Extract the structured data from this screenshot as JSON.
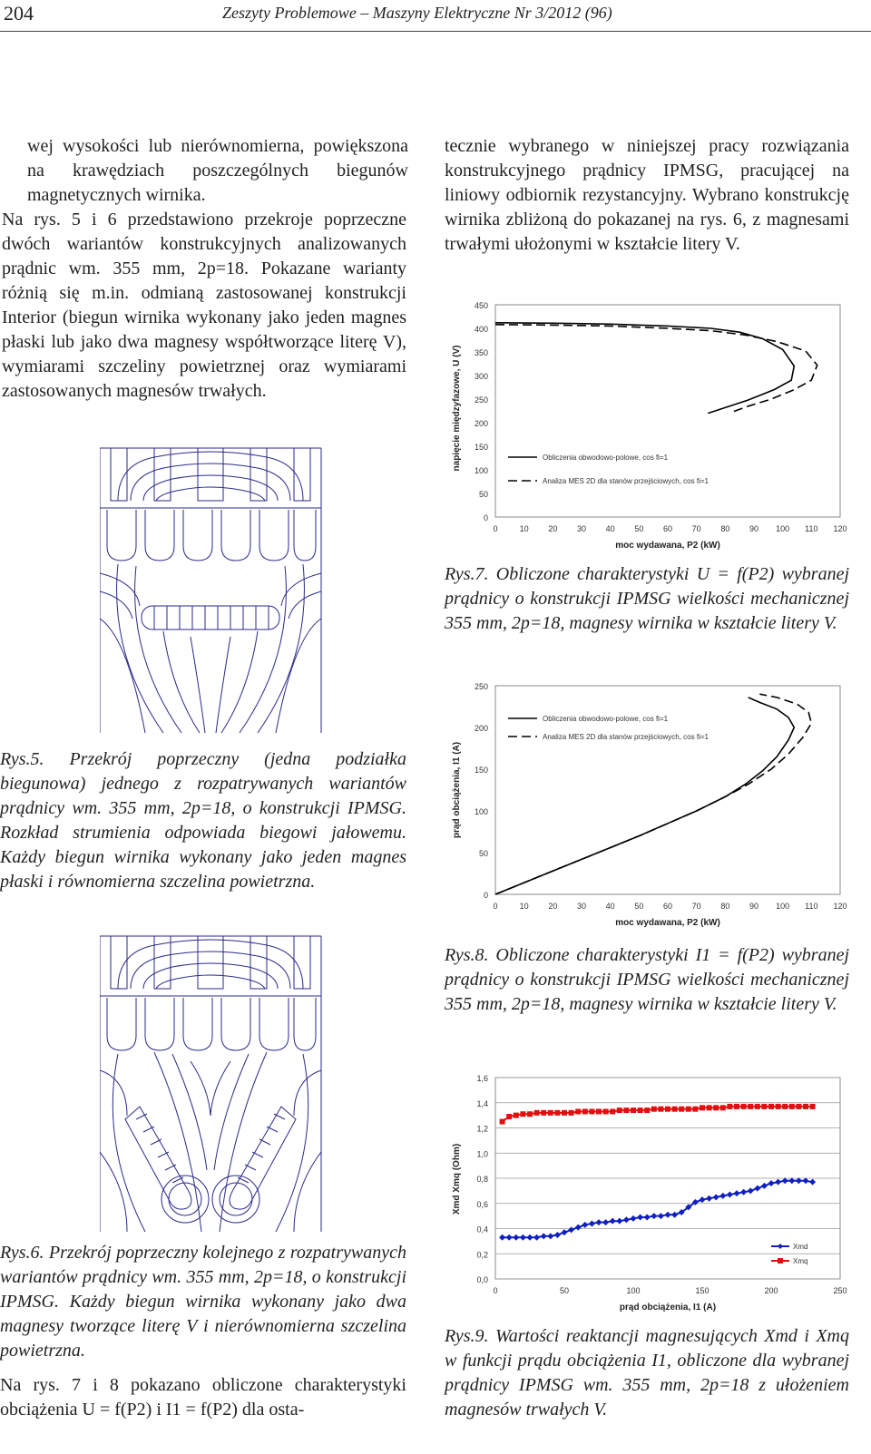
{
  "header": {
    "page_number": "204",
    "journal": "Zeszyty Problemowe – Maszyny Elektryczne Nr 3/2012 (96)"
  },
  "left_column": {
    "para1": "wej wysokości lub nierównomierna, powiększona na krawędziach poszczególnych biegunów magnetycznych wirnika.",
    "para2": "Na rys. 5 i 6 przedstawiono przekroje poprzeczne dwóch wariantów konstrukcyjnych analizowanych prądnic wm. 355 mm, 2p=18. Pokazane warianty różnią się m.in. odmianą zastosowanej konstrukcji Interior (biegun wirnika wykonany jako jeden magnes płaski lub jako dwa magnesy współtworzące literę V), wymiarami szczeliny powietrznej oraz wymiarami zastosowanych magnesów trwałych.",
    "fig5_caption": "Rys.5. Przekrój poprzeczny (jedna podziałka biegunowa) jednego z rozpatrywanych wariantów prądnicy wm. 355 mm, 2p=18, o konstrukcji IPMSG. Rozkład strumienia odpowiada biegowi jałowemu. Każdy biegun wirnika wykonany jako jeden magnes płaski i równomierna szczelina powietrzna.",
    "fig6_caption": "Rys.6. Przekrój poprzeczny kolejnego z rozpatrywanych wariantów prądnicy wm. 355 mm, 2p=18, o konstrukcji IPMSG. Każdy biegun wirnika wykonany jako dwa magnesy tworzące literę V i nierównomierna szczelina powietrzna.",
    "para3": "Na rys. 7 i 8 pokazano obliczone charakterystyki obciążenia U = f(P2) i I1 = f(P2) dla osta-"
  },
  "right_column": {
    "para1": "tecznie wybranego w niniejszej pracy rozwiązania konstrukcyjnego prądnicy IPMSG, pracującej na liniowy odbiornik rezystancyjny. Wybrano konstrukcję wirnika zbliżoną do pokazanej na rys. 6, z magnesami trwałymi ułożonymi w kształcie litery V.",
    "fig7_caption": "Rys.7. Obliczone charakterystyki U = f(P2) wybranej prądnicy o konstrukcji IPMSG wielkości mechanicznej 355 mm, 2p=18, magnesy wirnika w kształcie litery V.",
    "fig8_caption": "Rys.8. Obliczone charakterystyki I1 = f(P2) wybranej prądnicy o konstrukcji IPMSG wielkości mechanicznej 355 mm, 2p=18, magnesy wirnika w kształcie litery V.",
    "fig9_caption": "Rys.9. Wartości reaktancji magnesujących Xmd i Xmq w funkcji prądu obciążenia I1, obliczone dla wybranej prądnicy IPMSG wm. 355 mm, 2p=18 z ułożeniem magnesów trwałych V."
  },
  "colors": {
    "line": "#000000",
    "xmd": "#1020c0",
    "xmq": "#e01010",
    "drawing": "#2a2a8a"
  },
  "chart_data": [
    {
      "type": "line",
      "xlabel": "moc wydawana, P2 (kW)",
      "ylabel": "napięcie międzyfazowe, U (V)",
      "xticks": [
        "0",
        "10",
        "20",
        "30",
        "40",
        "50",
        "60",
        "70",
        "80",
        "90",
        "100",
        "110",
        "120"
      ],
      "yticks": [
        "0",
        "50",
        "100",
        "150",
        "200",
        "250",
        "300",
        "350",
        "400",
        "450"
      ],
      "xlim": [
        0,
        120
      ],
      "ylim": [
        0,
        450
      ],
      "legend_position": "lower-left",
      "series": [
        {
          "name": "Obliczenia obwodowo-polowe, cos fi=1",
          "style": "solid",
          "x": [
            0,
            20,
            40,
            60,
            75,
            85,
            93,
            100,
            104,
            103,
            97,
            88,
            80,
            74
          ],
          "y": [
            412,
            411,
            409,
            405,
            400,
            392,
            378,
            355,
            320,
            290,
            270,
            248,
            232,
            220
          ]
        },
        {
          "name": "Analiza MES 2D dla stanów przejściowych, cos fi=1",
          "style": "dashed",
          "x": [
            0,
            20,
            40,
            60,
            75,
            87,
            98,
            108,
            112,
            110,
            104,
            96,
            88,
            82
          ],
          "y": [
            408,
            407,
            405,
            400,
            395,
            386,
            372,
            352,
            322,
            290,
            270,
            250,
            235,
            222
          ]
        }
      ]
    },
    {
      "type": "line",
      "xlabel": "moc wydawana, P2 (kW)",
      "ylabel": "prąd obciążenia, I1 (A)",
      "xticks": [
        "0",
        "10",
        "20",
        "30",
        "40",
        "50",
        "60",
        "70",
        "80",
        "90",
        "100",
        "110",
        "120"
      ],
      "yticks": [
        "0",
        "50",
        "100",
        "150",
        "200",
        "250"
      ],
      "xlim": [
        0,
        120
      ],
      "ylim": [
        0,
        250
      ],
      "legend_position": "top-right",
      "series": [
        {
          "name": "Obliczenia obwodowo-polowe, cos fi=1",
          "style": "solid",
          "x": [
            0,
            10,
            20,
            30,
            40,
            50,
            60,
            70,
            80,
            87,
            93,
            98,
            102,
            104,
            102,
            98,
            92,
            88
          ],
          "y": [
            0,
            14,
            28,
            42,
            56,
            70,
            85,
            100,
            117,
            132,
            148,
            165,
            185,
            200,
            212,
            222,
            230,
            236
          ]
        },
        {
          "name": "Analiza MES 2D dla stanów przejściowych, cos fi=1",
          "style": "dashed",
          "x": [
            0,
            10,
            20,
            30,
            40,
            50,
            60,
            70,
            80,
            88,
            96,
            102,
            107,
            110,
            109,
            105,
            98,
            92
          ],
          "y": [
            0,
            14,
            28,
            42,
            56,
            70,
            85,
            100,
            117,
            132,
            150,
            168,
            188,
            205,
            218,
            228,
            236,
            240
          ]
        }
      ]
    },
    {
      "type": "line",
      "xlabel": "prąd obciążenia, I1 (A)",
      "ylabel": "Xmd Xmq (Ohm)",
      "xticks": [
        "0",
        "50",
        "100",
        "150",
        "200",
        "250"
      ],
      "yticks": [
        "0,0",
        "0,2",
        "0,4",
        "0,6",
        "0,8",
        "1,0",
        "1,2",
        "1,4",
        "1,6"
      ],
      "xlim": [
        0,
        250
      ],
      "ylim": [
        0,
        1.6
      ],
      "legend_position": "lower-right",
      "series": [
        {
          "name": "Xmd",
          "marker": "diamond",
          "x": [
            5,
            10,
            15,
            20,
            25,
            30,
            35,
            40,
            45,
            50,
            55,
            60,
            65,
            70,
            75,
            80,
            85,
            90,
            95,
            100,
            105,
            110,
            115,
            120,
            125,
            130,
            135,
            140,
            145,
            150,
            155,
            160,
            165,
            170,
            175,
            180,
            185,
            190,
            195,
            200,
            205,
            210,
            215,
            220,
            225,
            230
          ],
          "y": [
            0.33,
            0.33,
            0.33,
            0.33,
            0.33,
            0.33,
            0.34,
            0.34,
            0.35,
            0.37,
            0.39,
            0.41,
            0.43,
            0.44,
            0.45,
            0.45,
            0.46,
            0.46,
            0.47,
            0.48,
            0.49,
            0.49,
            0.5,
            0.5,
            0.51,
            0.51,
            0.53,
            0.57,
            0.61,
            0.63,
            0.64,
            0.65,
            0.66,
            0.67,
            0.68,
            0.69,
            0.7,
            0.72,
            0.74,
            0.76,
            0.77,
            0.78,
            0.78,
            0.78,
            0.78,
            0.77
          ]
        },
        {
          "name": "Xmq",
          "marker": "square",
          "x": [
            5,
            10,
            15,
            20,
            25,
            30,
            35,
            40,
            45,
            50,
            55,
            60,
            65,
            70,
            75,
            80,
            85,
            90,
            95,
            100,
            105,
            110,
            115,
            120,
            125,
            130,
            135,
            140,
            145,
            150,
            155,
            160,
            165,
            170,
            175,
            180,
            185,
            190,
            195,
            200,
            205,
            210,
            215,
            220,
            225,
            230
          ],
          "y": [
            1.25,
            1.29,
            1.3,
            1.31,
            1.31,
            1.32,
            1.32,
            1.32,
            1.32,
            1.32,
            1.32,
            1.33,
            1.33,
            1.33,
            1.33,
            1.33,
            1.33,
            1.34,
            1.34,
            1.34,
            1.34,
            1.34,
            1.35,
            1.35,
            1.35,
            1.35,
            1.35,
            1.35,
            1.35,
            1.36,
            1.36,
            1.36,
            1.36,
            1.37,
            1.37,
            1.37,
            1.37,
            1.37,
            1.37,
            1.37,
            1.37,
            1.37,
            1.37,
            1.37,
            1.37,
            1.37
          ]
        }
      ]
    }
  ]
}
